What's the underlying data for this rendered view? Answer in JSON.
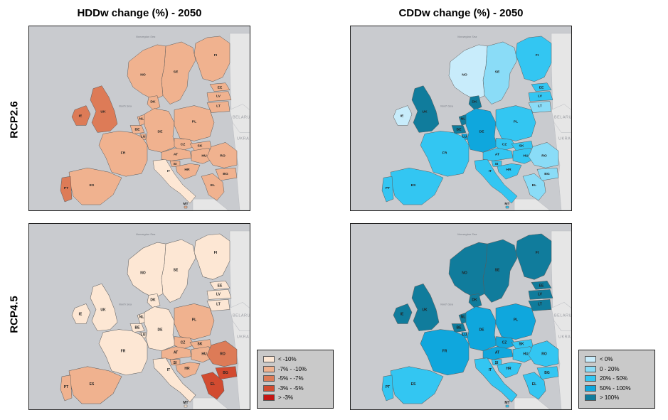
{
  "titles": {
    "hdd": "HDDw change (%) - 2050",
    "cdd": "CDDw change (%) - 2050"
  },
  "rows": {
    "rcp26": "RCP2.6",
    "rcp45": "RCP4.5"
  },
  "map_labels": {
    "seas": [
      "Norwegian Sea",
      "North Sea"
    ],
    "external": [
      "BELARUS",
      "UKRA"
    ]
  },
  "colors": {
    "hdd": [
      "#fde7d4",
      "#f0b28f",
      "#dd7b57",
      "#d24b30",
      "#c41614"
    ],
    "cdd": [
      "#c8ecfb",
      "#8adcf7",
      "#33c6f2",
      "#0fa7dd",
      "#107c9c"
    ],
    "sea": "#c9cbcf",
    "nonEU": "#e6e6e6",
    "border": "#5a5a5a"
  },
  "legend_hdd": [
    {
      "label": "< -10%",
      "color": "#fde7d4"
    },
    {
      "label": "-7% - -10%",
      "color": "#f0b28f"
    },
    {
      "label": "-5% - -7%",
      "color": "#dd7b57"
    },
    {
      "label": "-3% - -5%",
      "color": "#d24b30"
    },
    {
      "label": "> -3%",
      "color": "#c41614"
    }
  ],
  "legend_cdd": [
    {
      "label": "< 0%",
      "color": "#c8ecfb"
    },
    {
      "label": "0 - 20%",
      "color": "#8adcf7"
    },
    {
      "label": "20% - 50%",
      "color": "#33c6f2"
    },
    {
      "label": "50% - 100%",
      "color": "#0fa7dd"
    },
    {
      "label": "> 100%",
      "color": "#107c9c"
    }
  ],
  "countries": [
    "FI",
    "SE",
    "NO",
    "EE",
    "LV",
    "LT",
    "DK",
    "IE",
    "UK",
    "NL",
    "BE",
    "LU",
    "DE",
    "PL",
    "CZ",
    "SK",
    "FR",
    "AT",
    "HU",
    "SI",
    "HR",
    "RO",
    "BG",
    "IT",
    "ES",
    "PT",
    "EL",
    "MT"
  ],
  "map_classes": {
    "hdd_rcp26": {
      "FI": 1,
      "SE": 1,
      "NO": 1,
      "EE": 1,
      "LV": 1,
      "LT": 1,
      "DK": 1,
      "IE": 2,
      "UK": 2,
      "NL": 1,
      "BE": 1,
      "LU": 1,
      "DE": 1,
      "PL": 1,
      "CZ": 1,
      "SK": 1,
      "FR": 1,
      "AT": 1,
      "HU": 1,
      "SI": 1,
      "HR": 1,
      "RO": 1,
      "BG": 1,
      "IT": 0,
      "ES": 1,
      "PT": 2,
      "EL": 1,
      "MT": 1
    },
    "hdd_rcp45": {
      "FI": 0,
      "SE": 0,
      "NO": 0,
      "EE": 0,
      "LV": 0,
      "LT": 0,
      "DK": 0,
      "IE": 0,
      "UK": 0,
      "NL": 0,
      "BE": 0,
      "LU": 0,
      "DE": 0,
      "PL": 1,
      "CZ": 1,
      "SK": 1,
      "FR": 0,
      "AT": 1,
      "HU": 1,
      "SI": 1,
      "HR": 1,
      "RO": 2,
      "BG": 3,
      "IT": 0,
      "ES": 1,
      "PT": 1,
      "EL": 3,
      "MT": 0
    },
    "cdd_rcp26": {
      "FI": 2,
      "SE": 1,
      "NO": 0,
      "EE": 2,
      "LV": 2,
      "LT": 1,
      "DK": 4,
      "IE": 0,
      "UK": 4,
      "NL": 4,
      "BE": 4,
      "LU": 3,
      "DE": 3,
      "PL": 2,
      "CZ": 2,
      "SK": 2,
      "FR": 2,
      "AT": 2,
      "HU": 2,
      "SI": 2,
      "HR": 2,
      "RO": 1,
      "BG": 1,
      "IT": 2,
      "ES": 2,
      "PT": 2,
      "EL": 1,
      "MT": 2
    },
    "cdd_rcp45": {
      "FI": 4,
      "SE": 4,
      "NO": 4,
      "EE": 4,
      "LV": 4,
      "LT": 4,
      "DK": 4,
      "IE": 4,
      "UK": 4,
      "NL": 4,
      "BE": 4,
      "LU": 3,
      "DE": 3,
      "PL": 3,
      "CZ": 3,
      "SK": 2,
      "FR": 3,
      "AT": 3,
      "HU": 2,
      "SI": 2,
      "HR": 2,
      "RO": 2,
      "BG": 2,
      "IT": 2,
      "ES": 2,
      "PT": 2,
      "EL": 2,
      "MT": 2
    }
  }
}
